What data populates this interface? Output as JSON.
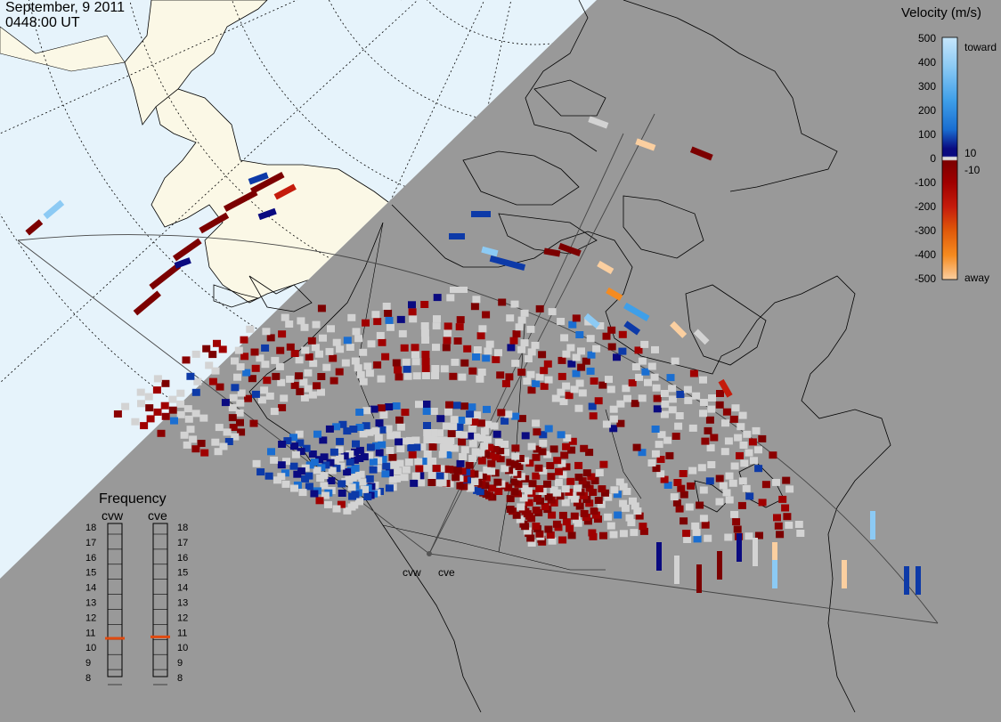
{
  "header": {
    "date": "September, 9 2011",
    "time": "0448:00 UT"
  },
  "colors": {
    "ocean": "#e6f3fb",
    "land": "#fbf8e6",
    "night_shade": "#999999",
    "no_data_cell": "#d3d3d3"
  },
  "velocity_scale": {
    "title": "Velocity (m/s)",
    "tick_values": [
      "500",
      "400",
      "300",
      "200",
      "100",
      "0",
      "-100",
      "-200",
      "-300",
      "-400",
      "-500"
    ],
    "near_zero_labels": [
      "10",
      "-10"
    ],
    "toward_label": "toward",
    "away_label": "away",
    "colors": [
      "#c6e6fb",
      "#8ccaf4",
      "#3f9fe8",
      "#1a6ed1",
      "#0d3aa8",
      "#0a0a80",
      "#aaaaaa",
      "#7c0000",
      "#a00000",
      "#c51c0c",
      "#e05a0a",
      "#f58b20",
      "#fbcfa0"
    ]
  },
  "radars": {
    "cvw_label": "cvw",
    "cve_label": "cve"
  },
  "frequency_panel": {
    "title": "Frequency",
    "radar_left": "cvw",
    "radar_right": "cve",
    "ticks": [
      "18",
      "17",
      "16",
      "15",
      "14",
      "13",
      "12",
      "11",
      "10",
      "9",
      "8"
    ],
    "cvw_freq_mhz": 10.6,
    "cve_freq_mhz": 10.7,
    "marker_color": "#e04a10"
  }
}
